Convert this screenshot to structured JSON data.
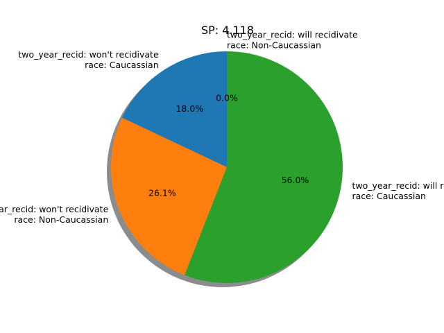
{
  "chart_data": {
    "type": "pie",
    "title": "SP: 4.118",
    "shadow": true,
    "start_angle_deg": 90,
    "direction": "counterclockwise",
    "slices": [
      {
        "label_lines": [
          "two_year_recid: won't recidivate",
          "race: Caucassian"
        ],
        "percent_text": "18.0%",
        "value": 18.0,
        "color": "#1f77b4"
      },
      {
        "label_lines": [
          "two_year_recid: won't recidivate",
          "race: Non-Caucassian"
        ],
        "percent_text": "26.1%",
        "value": 26.1,
        "color": "#ff7f0e"
      },
      {
        "label_lines": [
          "two_year_recid: will recidivate",
          "race: Caucassian"
        ],
        "percent_text": "56.0%",
        "value": 56.0,
        "color": "#2ca02c"
      },
      {
        "label_lines": [
          "two_year_recid: will recidivate",
          "race: Non-Caucassian"
        ],
        "percent_text": "0.0%",
        "value": 0.0,
        "color": "#d62728"
      }
    ]
  }
}
